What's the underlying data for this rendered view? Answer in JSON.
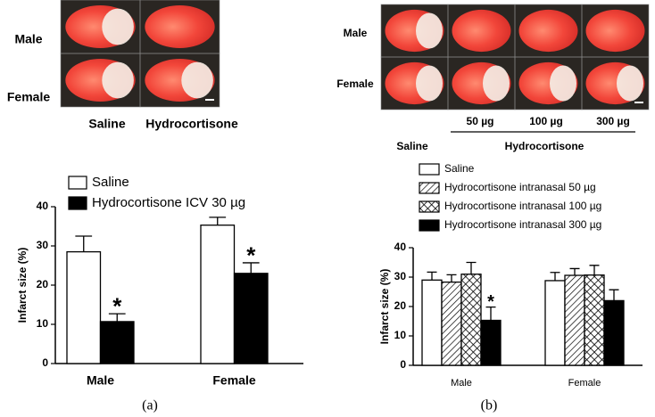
{
  "images": [
    {
      "rows": [
        "Male",
        "Female"
      ],
      "columns": [
        "Saline",
        "Hydrocortisone"
      ]
    },
    {
      "rows": [
        "Male",
        "Female"
      ],
      "columns": [
        "50 µg",
        "100 µg",
        "300 µg"
      ],
      "groups": [
        "Saline",
        "Hydrocortisone"
      ]
    }
  ],
  "captions": [
    "(a)",
    "(b)"
  ],
  "chart_data": [
    {
      "type": "bar",
      "ylabel": "Infarct size (%)",
      "categories": [
        "Male",
        "Female"
      ],
      "ylim": [
        0,
        40
      ],
      "yticks": [
        0,
        10,
        20,
        30,
        40
      ],
      "series": [
        {
          "name": "Saline",
          "color": "#ffffff",
          "pattern": "solid",
          "values": [
            28.5,
            35.3
          ],
          "errors": [
            4,
            2
          ]
        },
        {
          "name": "Hydrocortisone ICV  30 µg",
          "color": "#000000",
          "pattern": "solid",
          "values": [
            10.7,
            23
          ],
          "errors": [
            2,
            2.7
          ],
          "annotations": [
            "*",
            "*"
          ]
        }
      ]
    },
    {
      "type": "bar",
      "ylabel": "Infarct size (%)",
      "categories": [
        "Male",
        "Female"
      ],
      "ylim": [
        0,
        40
      ],
      "yticks": [
        0,
        10,
        20,
        30,
        40
      ],
      "series": [
        {
          "name": "Saline",
          "color": "#ffffff",
          "pattern": "solid",
          "values": [
            29,
            28.8
          ],
          "errors": [
            2.7,
            2.8
          ]
        },
        {
          "name": "Hydrocortisone intranasal 50 µg",
          "color": "#000000",
          "pattern": "hatch",
          "values": [
            28.3,
            30.6
          ],
          "errors": [
            2.5,
            2.3
          ]
        },
        {
          "name": "Hydrocortisone intranasal 100 µg",
          "color": "#000000",
          "pattern": "crosshatch",
          "values": [
            31,
            30.7
          ],
          "errors": [
            4,
            3.3
          ]
        },
        {
          "name": "Hydrocortisone intranasal 300 µg",
          "color": "#000000",
          "pattern": "solid",
          "values": [
            15.3,
            22
          ],
          "errors": [
            4.5,
            3.7
          ],
          "annotations": [
            "*",
            null
          ]
        }
      ]
    }
  ]
}
